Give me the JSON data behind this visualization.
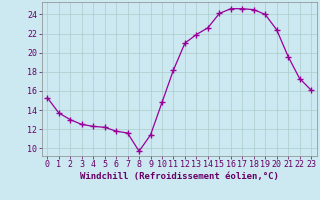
{
  "x": [
    0,
    1,
    2,
    3,
    4,
    5,
    6,
    7,
    8,
    9,
    10,
    11,
    12,
    13,
    14,
    15,
    16,
    17,
    18,
    19,
    20,
    21,
    22,
    23
  ],
  "y": [
    15.3,
    13.7,
    13.0,
    12.5,
    12.3,
    12.2,
    11.8,
    11.6,
    9.7,
    11.4,
    14.8,
    18.2,
    21.0,
    21.9,
    22.6,
    24.1,
    24.6,
    24.6,
    24.5,
    24.0,
    22.4,
    19.6,
    17.3,
    16.1
  ],
  "line_color": "#990099",
  "marker": "+",
  "marker_size": 4,
  "bg_color": "#cce8f0",
  "grid_color": "#aacccc",
  "ylabel_ticks": [
    10,
    12,
    14,
    16,
    18,
    20,
    22,
    24
  ],
  "xtick_labels": [
    "0",
    "1",
    "2",
    "3",
    "4",
    "5",
    "6",
    "7",
    "8",
    "9",
    "10",
    "11",
    "12",
    "13",
    "14",
    "15",
    "16",
    "17",
    "18",
    "19",
    "20",
    "21",
    "22",
    "23"
  ],
  "xlabel": "Windchill (Refroidissement éolien,°C)",
  "xlim": [
    -0.5,
    23.5
  ],
  "ylim": [
    9.2,
    25.3
  ],
  "xlabel_fontsize": 6.5,
  "tick_fontsize": 6.0,
  "label_color": "#660066",
  "spine_color": "#888888"
}
